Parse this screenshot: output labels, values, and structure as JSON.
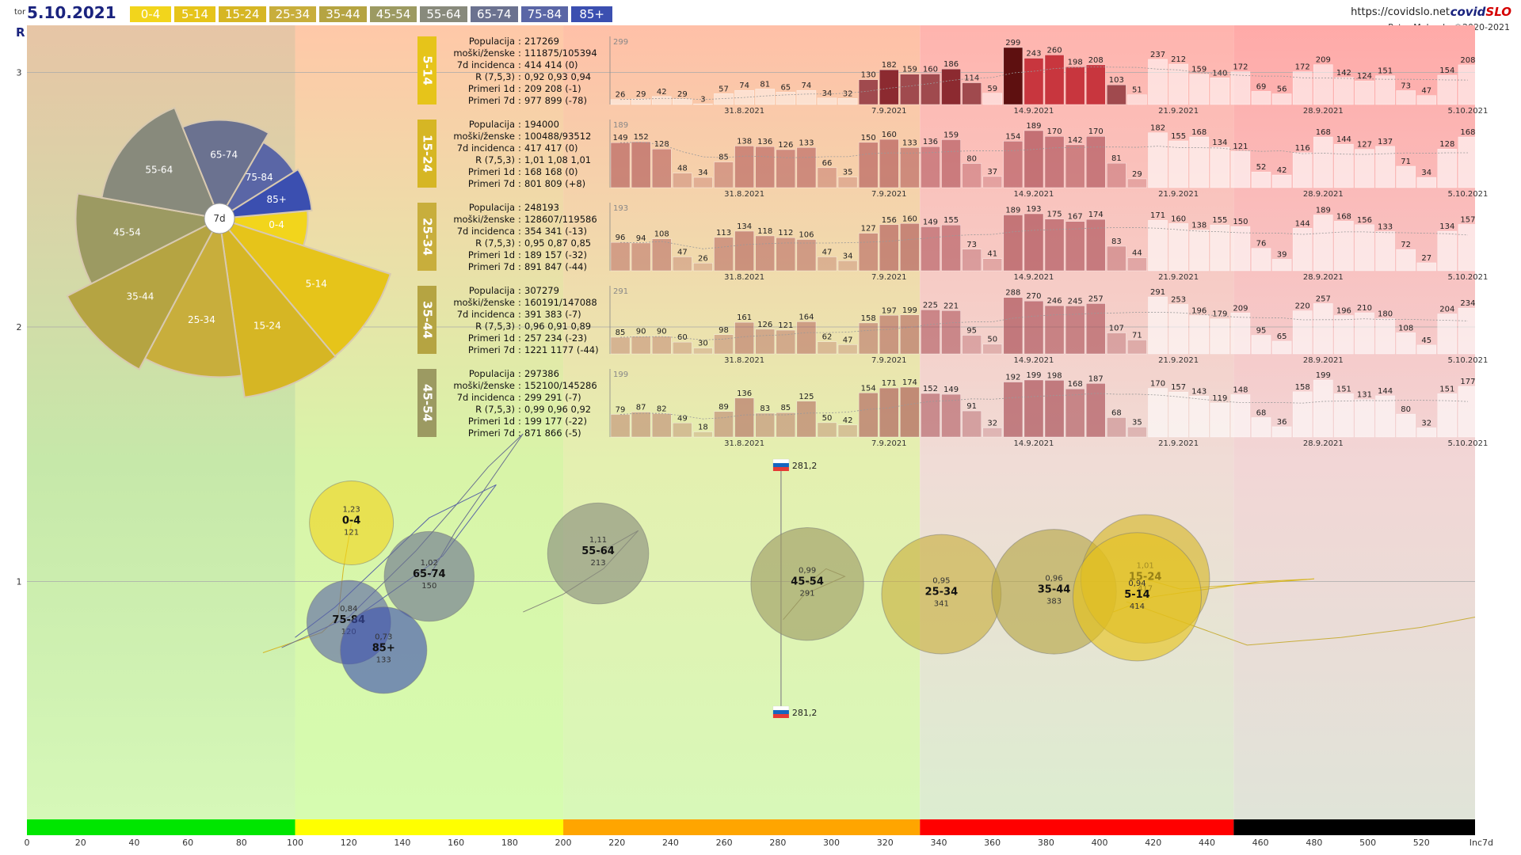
{
  "header": {
    "day": "tor",
    "date": "5.10.2021",
    "url": "https://covidslo.net",
    "brand_a": "covid",
    "brand_b": "SLO",
    "author": "Peter Malovrh, ©2020-2021",
    "r_label": "R"
  },
  "legend": [
    {
      "label": "0-4",
      "color": "#f2d51c"
    },
    {
      "label": "5-14",
      "color": "#e6c41a"
    },
    {
      "label": "15-24",
      "color": "#d6b624"
    },
    {
      "label": "25-34",
      "color": "#c8ae3c"
    },
    {
      "label": "35-44",
      "color": "#b5a442"
    },
    {
      "label": "45-54",
      "color": "#9c9a62"
    },
    {
      "label": "55-64",
      "color": "#888a7c"
    },
    {
      "label": "65-74",
      "color": "#6b7290"
    },
    {
      "label": "75-84",
      "color": "#5a66a6"
    },
    {
      "label": "85+",
      "color": "#3b4fb0"
    }
  ],
  "chart_data": [
    {
      "type": "scatter",
      "name": "bubble-chart",
      "title": "R vs 7-day incidence by age group",
      "xlabel": "Inc7d",
      "ylabel": "R",
      "xlim": [
        0,
        540
      ],
      "x_ticks": [
        0,
        20,
        40,
        60,
        80,
        100,
        120,
        140,
        160,
        180,
        200,
        220,
        240,
        260,
        280,
        300,
        320,
        340,
        360,
        380,
        400,
        420,
        440,
        460,
        480,
        500,
        520
      ],
      "y_ticks": [
        1,
        2,
        3
      ],
      "bands": [
        {
          "from": 0,
          "to": 100,
          "color": "#00e600"
        },
        {
          "from": 100,
          "to": 200,
          "color": "#ffff00"
        },
        {
          "from": 200,
          "to": 333,
          "color": "#ffa500"
        },
        {
          "from": 333,
          "to": 450,
          "color": "#ff0000"
        },
        {
          "from": 450,
          "to": 540,
          "color": "#000000"
        }
      ],
      "reference": {
        "x": 281.2,
        "label": "281,2"
      },
      "points": [
        {
          "group": "0-4",
          "r": 1.23,
          "r_label": "1,23",
          "inc": 121,
          "label": "0-4",
          "color": "#f2d51c"
        },
        {
          "group": "65-74",
          "r": 1.02,
          "r_label": "1,02",
          "inc": 150,
          "label": "65-74",
          "color": "#6b7290"
        },
        {
          "group": "75-84",
          "r": 0.84,
          "r_label": "0,84",
          "inc": 120,
          "label": "75-84",
          "color": "#5a66a6"
        },
        {
          "group": "85+",
          "r": 0.73,
          "r_label": "0,73",
          "inc": 133,
          "label": "85+",
          "color": "#3b4fb0"
        },
        {
          "group": "55-64",
          "r": 1.11,
          "r_label": "1,11",
          "inc": 213,
          "label": "55-64",
          "color": "#888a7c"
        },
        {
          "group": "45-54",
          "r": 0.99,
          "r_label": "0,99",
          "inc": 291,
          "label": "45-54",
          "color": "#9c9a62"
        },
        {
          "group": "25-34",
          "r": 0.95,
          "r_label": "0,95",
          "inc": 341,
          "label": "25-34",
          "color": "#c8ae3c"
        },
        {
          "group": "35-44",
          "r": 0.96,
          "r_label": "0,96",
          "inc": 383,
          "label": "35-44",
          "color": "#b5a442"
        },
        {
          "group": "15-24",
          "r": 1.01,
          "r_label": "1,01",
          "inc": 417,
          "label": "15-24",
          "color": "#d6b624"
        },
        {
          "group": "5-14",
          "r": 0.94,
          "r_label": "0,94",
          "inc": 414,
          "label": "5-14",
          "color": "#e6c41a"
        }
      ]
    },
    {
      "type": "pie",
      "name": "rose-chart",
      "center_label": "7d",
      "slices": [
        {
          "label": "0-4",
          "value": 121,
          "color": "#f2d51c"
        },
        {
          "label": "5-14",
          "value": 414,
          "color": "#e6c41a"
        },
        {
          "label": "15-24",
          "value": 417,
          "color": "#d6b624"
        },
        {
          "label": "25-34",
          "value": 341,
          "color": "#c8ae3c"
        },
        {
          "label": "35-44",
          "value": 383,
          "color": "#b5a442"
        },
        {
          "label": "45-54",
          "value": 291,
          "color": "#9c9a62"
        },
        {
          "label": "55-64",
          "value": 213,
          "color": "#888a7c"
        },
        {
          "label": "65-74",
          "value": 150,
          "color": "#6b7290"
        },
        {
          "label": "75-84",
          "value": 120,
          "color": "#5a66a6"
        },
        {
          "label": "85+",
          "value": 133,
          "color": "#3b4fb0"
        }
      ]
    },
    {
      "type": "bar",
      "name": "daily-cases",
      "date_labels": [
        "31.8.2021",
        "7.9.2021",
        "14.9.2021",
        "21.9.2021",
        "28.9.2021",
        "5.10.2021"
      ],
      "label_keys": [
        "Populacija",
        "moški/ženske",
        "7d incidenca",
        "R (7,5,3)",
        "Primeri 1d",
        "Primeri 7d"
      ],
      "panels": [
        {
          "group": "5-14",
          "color": "#e6c41a",
          "max": 299,
          "info": [
            "217269",
            "111875/105394",
            "414 414 (0)",
            "0,92 0,93 0,94",
            "209 208 (-1)",
            "977 899 (-78)"
          ],
          "values": [
            26,
            29,
            42,
            29,
            3,
            57,
            74,
            81,
            65,
            74,
            34,
            32,
            130,
            182,
            159,
            160,
            186,
            114,
            59,
            299,
            243,
            260,
            198,
            208,
            103,
            51,
            237,
            212,
            159,
            140,
            172,
            69,
            56,
            172,
            209,
            142,
            124,
            151,
            73,
            47,
            154,
            208
          ]
        },
        {
          "group": "15-24",
          "color": "#d6b624",
          "max": 189,
          "info": [
            "194000",
            "100488/93512",
            "417 417 (0)",
            "1,01 1,08 1,01",
            "168 168 (0)",
            "801 809 (+8)"
          ],
          "values": [
            149,
            152,
            128,
            48,
            34,
            85,
            138,
            136,
            126,
            133,
            66,
            35,
            150,
            160,
            133,
            136,
            159,
            80,
            37,
            154,
            189,
            170,
            142,
            170,
            81,
            29,
            182,
            155,
            168,
            134,
            121,
            52,
            42,
            116,
            168,
            144,
            127,
            137,
            71,
            34,
            128,
            168
          ]
        },
        {
          "group": "25-34",
          "color": "#c8ae3c",
          "max": 193,
          "info": [
            "248193",
            "128607/119586",
            "354 341 (-13)",
            "0,95 0,87 0,85",
            "189 157 (-32)",
            "891 847 (-44)"
          ],
          "values": [
            96,
            94,
            108,
            47,
            26,
            113,
            134,
            118,
            112,
            106,
            47,
            34,
            127,
            156,
            160,
            149,
            155,
            73,
            41,
            189,
            193,
            175,
            167,
            174,
            83,
            44,
            171,
            160,
            138,
            155,
            150,
            76,
            39,
            144,
            189,
            168,
            156,
            133,
            72,
            27,
            134,
            157
          ]
        },
        {
          "group": "35-44",
          "color": "#b5a442",
          "max": 291,
          "info": [
            "307279",
            "160191/147088",
            "391 383 (-7)",
            "0,96 0,91 0,89",
            "257 234 (-23)",
            "1221 1177 (-44)"
          ],
          "values": [
            85,
            90,
            90,
            60,
            30,
            98,
            161,
            126,
            121,
            164,
            62,
            47,
            158,
            197,
            199,
            225,
            221,
            95,
            50,
            288,
            270,
            246,
            245,
            257,
            107,
            71,
            291,
            253,
            196,
            179,
            209,
            95,
            65,
            220,
            257,
            196,
            210,
            180,
            108,
            45,
            204,
            234
          ]
        },
        {
          "group": "45-54",
          "color": "#9c9a62",
          "max": 199,
          "info": [
            "297386",
            "152100/145286",
            "299 291 (-7)",
            "0,99 0,96 0,92",
            "199 177 (-22)",
            "871 866 (-5)"
          ],
          "values": [
            79,
            87,
            82,
            49,
            18,
            89,
            136,
            83,
            85,
            125,
            50,
            42,
            154,
            171,
            174,
            152,
            149,
            91,
            32,
            192,
            199,
            198,
            168,
            187,
            68,
            35,
            170,
            157,
            143,
            119,
            148,
            68,
            36,
            158,
            199,
            151,
            131,
            144,
            80,
            32,
            151,
            177
          ]
        }
      ]
    }
  ]
}
